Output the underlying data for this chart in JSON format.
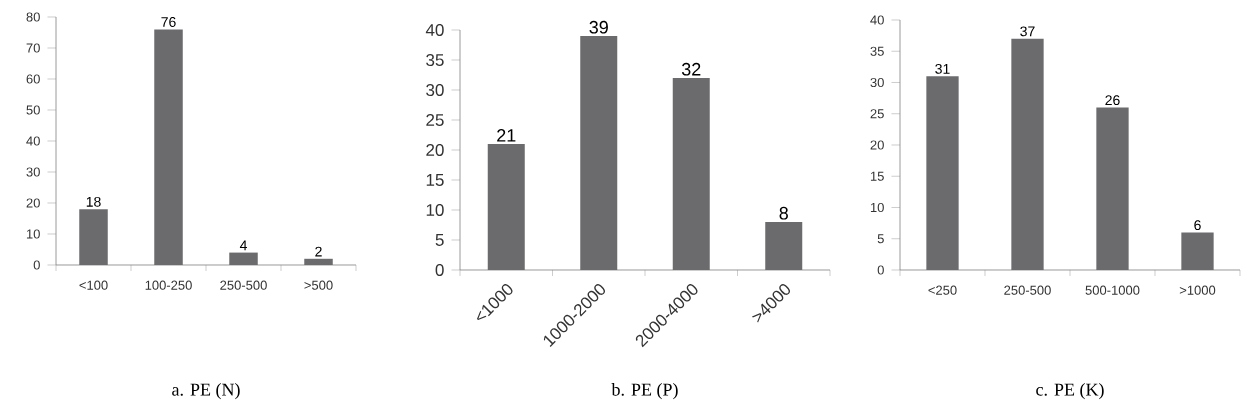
{
  "chart_data": [
    {
      "type": "bar",
      "title": "a. PE (N)",
      "categories": [
        "<100",
        "100-250",
        "250-500",
        ">500"
      ],
      "values": [
        18,
        76,
        4,
        2
      ],
      "color": "#6b6b6e",
      "ylim": [
        0,
        80
      ],
      "yticks": [
        0,
        10,
        20,
        30,
        40,
        50,
        60,
        70,
        80
      ],
      "data_labels": true
    },
    {
      "type": "bar",
      "title": "b. PE (P)",
      "categories": [
        "<1000",
        "1000-2000",
        "2000-4000",
        ">4000"
      ],
      "values": [
        21,
        39,
        32,
        8
      ],
      "color": "#6b6b6e",
      "ylim": [
        0,
        40
      ],
      "yticks": [
        0,
        5,
        10,
        15,
        20,
        25,
        30,
        35,
        40
      ],
      "data_labels": true
    },
    {
      "type": "bar",
      "title": "c. PE (K)",
      "categories": [
        "<250",
        "250-500",
        "500-1000",
        ">1000"
      ],
      "values": [
        31,
        37,
        26,
        6
      ],
      "color": "#6b6b6e",
      "ylim": [
        0,
        40
      ],
      "yticks": [
        0,
        5,
        10,
        15,
        20,
        25,
        30,
        35,
        40
      ],
      "data_labels": true
    }
  ]
}
